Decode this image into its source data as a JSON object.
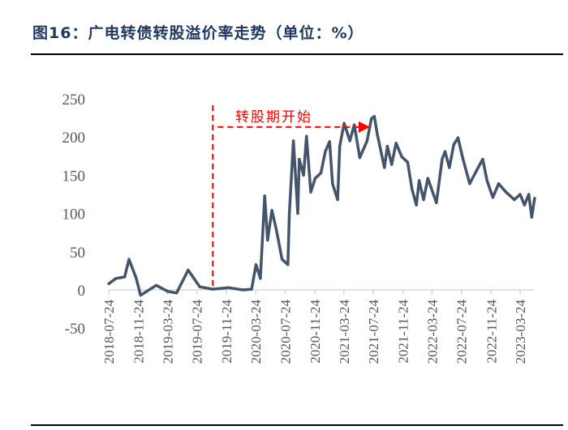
{
  "title": "图16：广电转债转股溢价率走势（单位：%）",
  "chart_data": {
    "type": "line",
    "title": "",
    "xlabel": "",
    "ylabel": "",
    "ylim": [
      -50,
      250
    ],
    "yticks": [
      "250",
      "200",
      "150",
      "100",
      "50",
      "0",
      "-50"
    ],
    "xticks": [
      "2018-07-24",
      "2018-11-24",
      "2019-03-24",
      "2019-07-24",
      "2019-11-24",
      "2020-03-24",
      "2020-07-24",
      "2020-11-24",
      "2021-03-24",
      "2021-07-24",
      "2021-11-24",
      "2022-03-24",
      "2022-07-24",
      "2022-11-24",
      "2023-03-24"
    ],
    "grid": false,
    "line_color": "#44546a",
    "annotation": {
      "text": "转股期开始",
      "color": "#ff0000",
      "start_date": "2019-09-28",
      "end_date": "2021-07-10",
      "level": 213
    },
    "series": [
      {
        "x": [
          "2018-07-24",
          "2018-08-23",
          "2018-09-28",
          "2018-10-16",
          "2018-11-15",
          "2018-12-03",
          "2019-02-06",
          "2019-03-26",
          "2019-05-01",
          "2019-06-18",
          "2019-08-05",
          "2019-09-28",
          "2019-12-02",
          "2020-01-31",
          "2020-03-07",
          "2020-03-25",
          "2020-04-12",
          "2020-04-30",
          "2020-05-12",
          "2020-05-30",
          "2020-06-17",
          "2020-07-11",
          "2020-08-04",
          "2020-08-10",
          "2020-08-27",
          "2020-09-14",
          "2020-09-20",
          "2020-10-08",
          "2020-10-20",
          "2020-11-07",
          "2020-11-25",
          "2020-12-19",
          "2021-01-06",
          "2021-01-24",
          "2021-02-05",
          "2021-02-26",
          "2021-03-07",
          "2021-03-25",
          "2021-04-18",
          "2021-05-06",
          "2021-05-29",
          "2021-06-28",
          "2021-07-16",
          "2021-07-28",
          "2021-08-09",
          "2021-09-08",
          "2021-09-20",
          "2021-10-08",
          "2021-10-26",
          "2021-11-19",
          "2021-12-13",
          "2021-12-31",
          "2022-01-18",
          "2022-01-30",
          "2022-02-17",
          "2022-03-07",
          "2022-04-11",
          "2022-05-05",
          "2022-05-17",
          "2022-06-04",
          "2022-06-22",
          "2022-07-10",
          "2022-07-28",
          "2022-08-27",
          "2022-09-26",
          "2022-10-20",
          "2022-11-07",
          "2022-12-01",
          "2022-12-25",
          "2023-01-24",
          "2023-02-28",
          "2023-03-24",
          "2023-04-11",
          "2023-04-29",
          "2023-05-11",
          "2023-05-23"
        ],
        "y": [
          8,
          15,
          17,
          40,
          15,
          -7,
          6,
          -2,
          -4,
          26,
          4,
          1,
          3,
          0,
          1,
          33,
          15,
          123,
          65,
          104,
          79,
          40,
          33,
          100,
          195,
          100,
          171,
          150,
          201,
          128,
          146,
          153,
          181,
          194,
          139,
          118,
          188,
          218,
          195,
          216,
          173,
          195,
          224,
          227,
          204,
          160,
          188,
          164,
          192,
          174,
          167,
          132,
          111,
          143,
          118,
          146,
          114,
          171,
          181,
          160,
          190,
          199,
          174,
          139,
          157,
          171,
          143,
          121,
          139,
          128,
          118,
          125,
          111,
          125,
          95,
          120
        ]
      }
    ]
  }
}
